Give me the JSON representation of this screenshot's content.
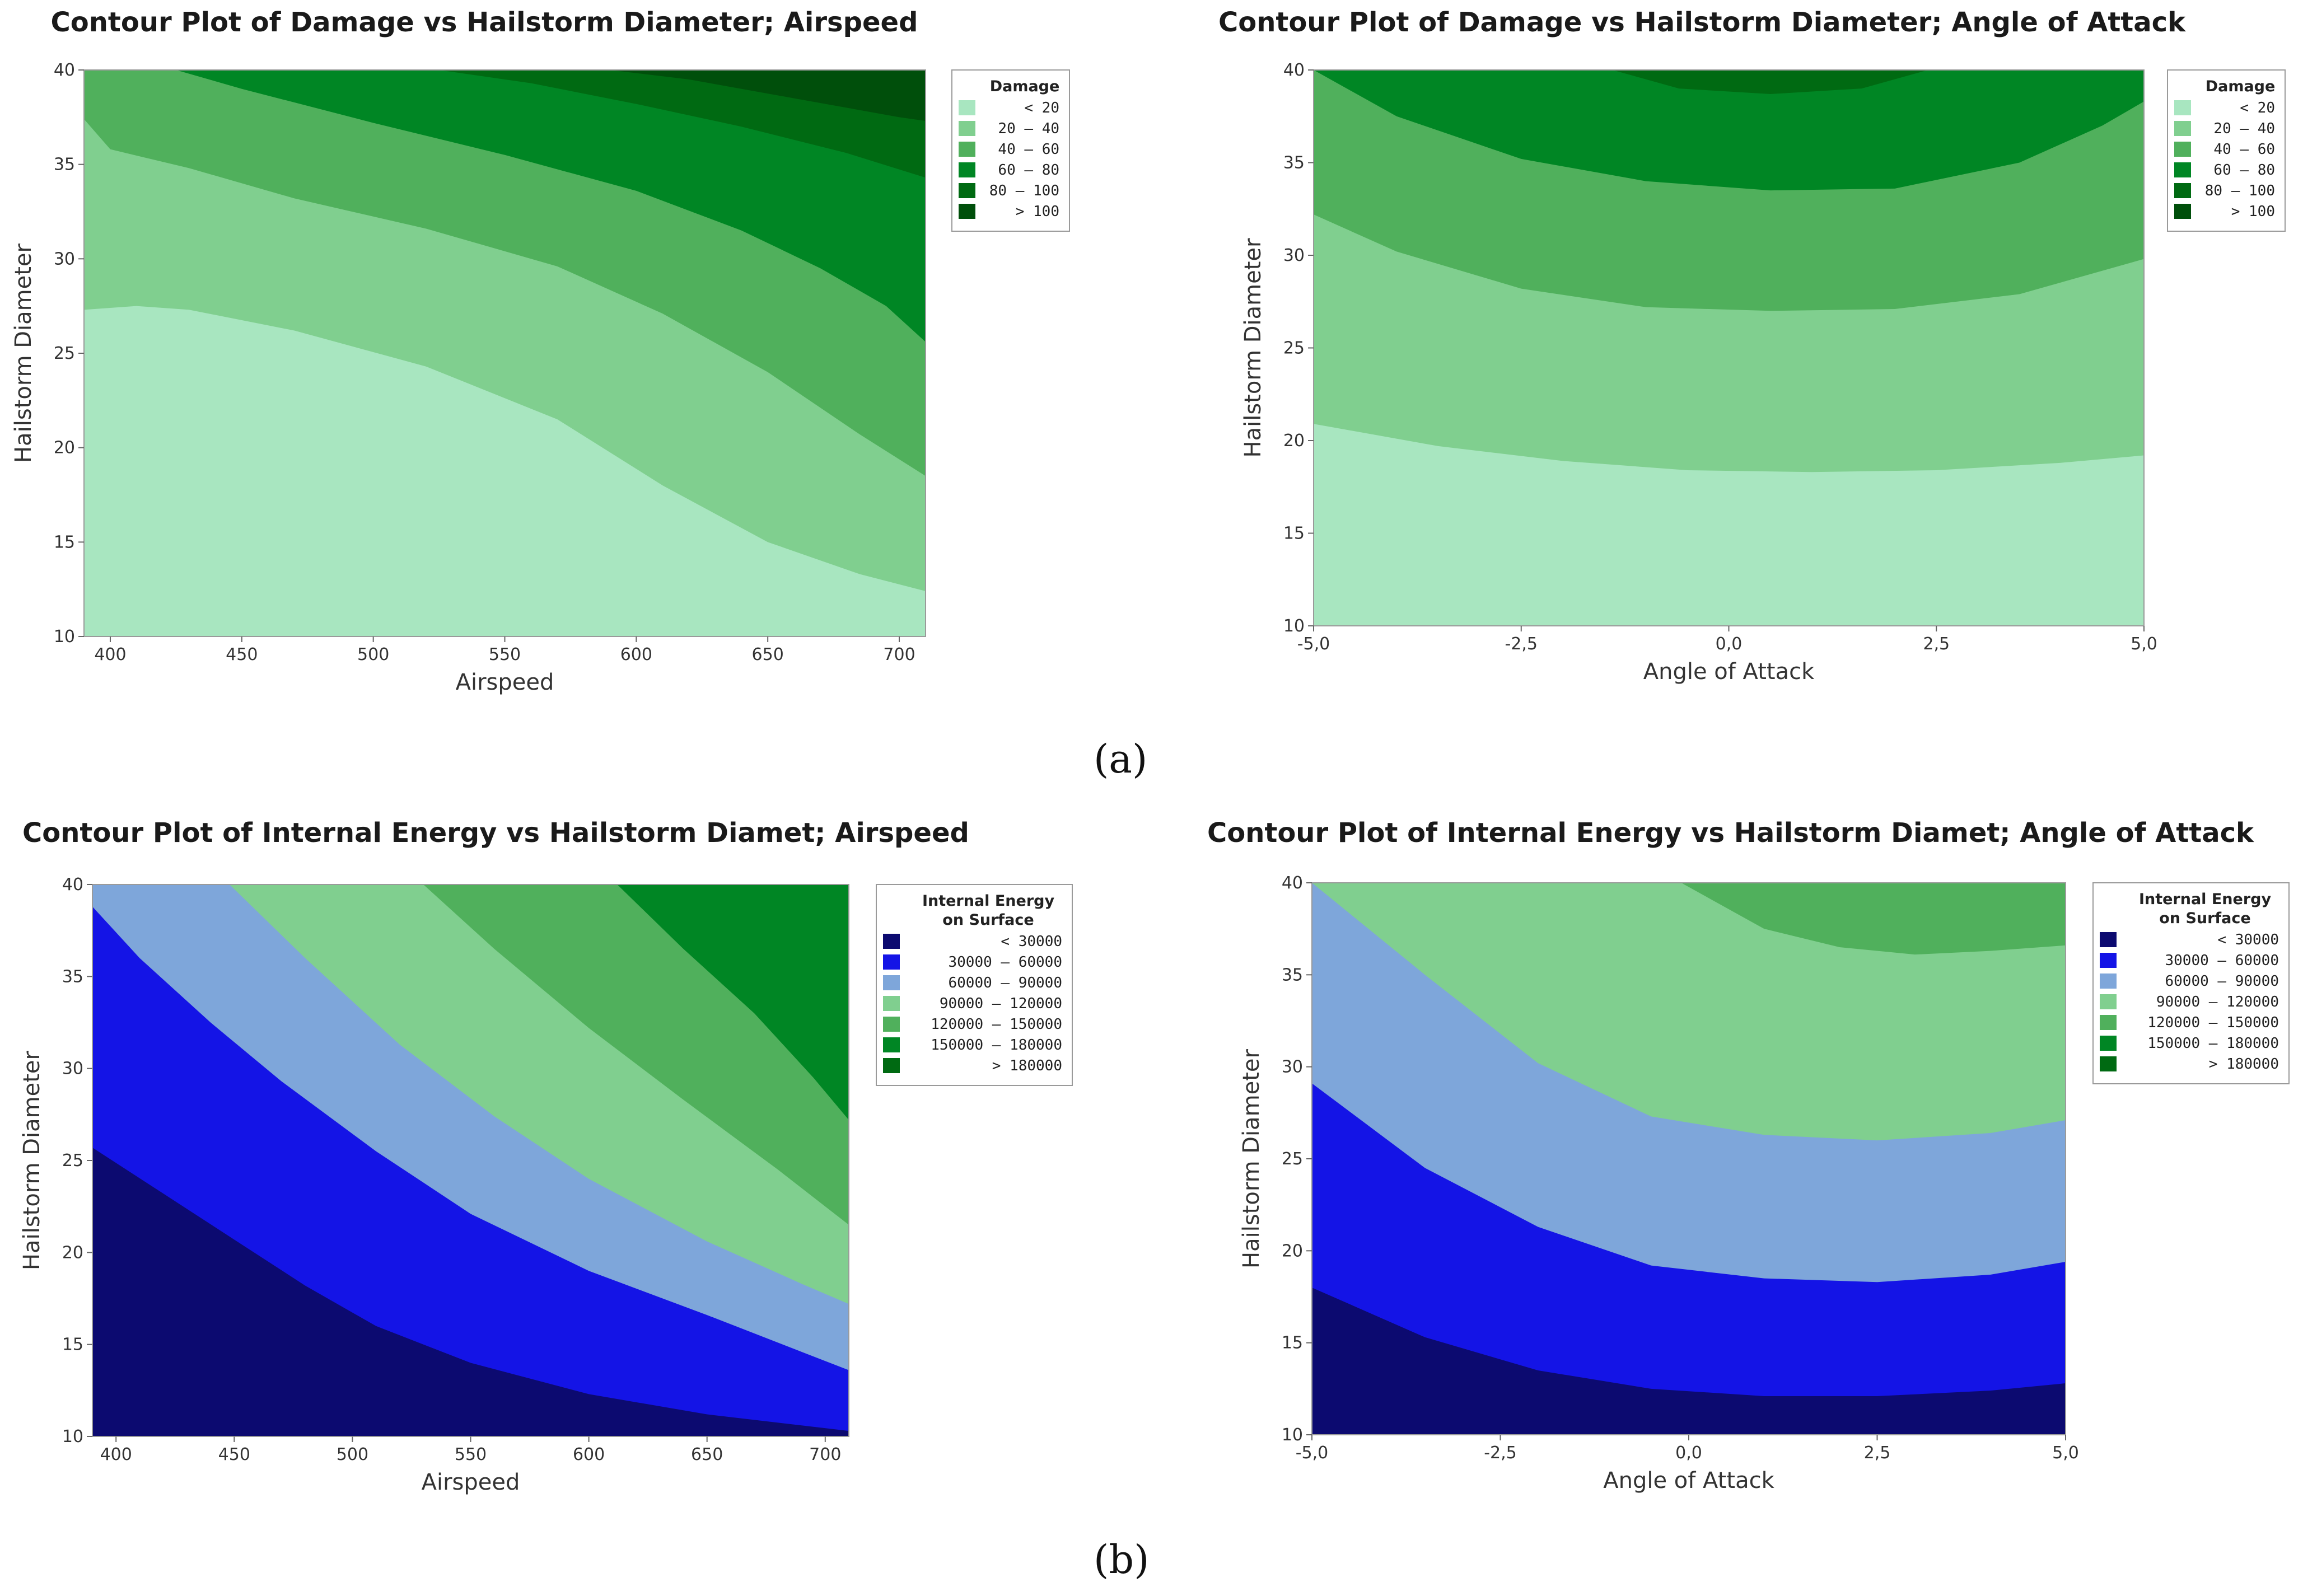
{
  "figure_labels": {
    "a": "(a)",
    "b": "(b)"
  },
  "chart_data": [
    {
      "type": "contour",
      "title": "Contour Plot of Damage vs Hailstorm Diameter; Airspeed",
      "xlabel": "Airspeed",
      "ylabel": "Hailstorm Diameter",
      "xlim": [
        390,
        710
      ],
      "ylim": [
        10,
        40
      ],
      "xticks": [
        400,
        450,
        500,
        550,
        600,
        650,
        700
      ],
      "xtick_labels": [
        "400",
        "450",
        "500",
        "550",
        "600",
        "650",
        "700"
      ],
      "yticks": [
        10,
        15,
        20,
        25,
        30,
        35,
        40
      ],
      "ytick_labels": [
        "10",
        "15",
        "20",
        "25",
        "30",
        "35",
        "40"
      ],
      "legend": {
        "title": [
          "Damage"
        ],
        "bands": [
          {
            "label": "<  20",
            "color": "#a8e6c0"
          },
          {
            "label": "20 –  40",
            "color": "#80cf8f"
          },
          {
            "label": "40 –  60",
            "color": "#50b05c"
          },
          {
            "label": "60 –  80",
            "color": "#008624"
          },
          {
            "label": "80 – 100",
            "color": "#006a12"
          },
          {
            "label": ">  100",
            "color": "#004f0b"
          }
        ]
      },
      "contour_levels": [
        {
          "level": 20,
          "points": [
            [
              390,
              27.3
            ],
            [
              410,
              27.5
            ],
            [
              430,
              27.3
            ],
            [
              470,
              26.2
            ],
            [
              520,
              24.3
            ],
            [
              570,
              21.5
            ],
            [
              610,
              18.0
            ],
            [
              650,
              15.0
            ],
            [
              685,
              13.3
            ],
            [
              710,
              12.4
            ]
          ]
        },
        {
          "level": 40,
          "points": [
            [
              390,
              37.4
            ],
            [
              400,
              35.8
            ],
            [
              430,
              34.8
            ],
            [
              470,
              33.2
            ],
            [
              520,
              31.6
            ],
            [
              570,
              29.6
            ],
            [
              610,
              27.1
            ],
            [
              650,
              24.0
            ],
            [
              685,
              20.7
            ],
            [
              710,
              18.5
            ]
          ]
        },
        {
          "level": 60,
          "points": [
            [
              425,
              40
            ],
            [
              450,
              39.0
            ],
            [
              500,
              37.2
            ],
            [
              550,
              35.5
            ],
            [
              600,
              33.6
            ],
            [
              640,
              31.5
            ],
            [
              670,
              29.5
            ],
            [
              695,
              27.5
            ],
            [
              710,
              25.6
            ]
          ]
        },
        {
          "level": 80,
          "points": [
            [
              525,
              40
            ],
            [
              560,
              39.3
            ],
            [
              600,
              38.2
            ],
            [
              640,
              37.0
            ],
            [
              680,
              35.6
            ],
            [
              710,
              34.3
            ]
          ]
        },
        {
          "level": 100,
          "points": [
            [
              590,
              40
            ],
            [
              620,
              39.5
            ],
            [
              660,
              38.5
            ],
            [
              700,
              37.5
            ],
            [
              710,
              37.3
            ]
          ]
        }
      ]
    },
    {
      "type": "contour",
      "title": "Contour Plot of Damage vs Hailstorm Diameter; Angle of Attack",
      "xlabel": "Angle of Attack",
      "ylabel": "Hailstorm Diameter",
      "xlim": [
        -5,
        5
      ],
      "ylim": [
        10,
        40
      ],
      "xticks": [
        -5,
        -2.5,
        0,
        2.5,
        5
      ],
      "xtick_labels": [
        "-5,0",
        "-2,5",
        "0,0",
        "2,5",
        "5,0"
      ],
      "yticks": [
        10,
        15,
        20,
        25,
        30,
        35,
        40
      ],
      "ytick_labels": [
        "10",
        "15",
        "20",
        "25",
        "30",
        "35",
        "40"
      ],
      "legend": {
        "title": [
          "Damage"
        ],
        "bands": [
          {
            "label": "<  20",
            "color": "#a8e6c0"
          },
          {
            "label": "20 –  40",
            "color": "#80cf8f"
          },
          {
            "label": "40 –  60",
            "color": "#50b05c"
          },
          {
            "label": "60 –  80",
            "color": "#008624"
          },
          {
            "label": "80 – 100",
            "color": "#006a12"
          },
          {
            "label": ">  100",
            "color": "#004f0b"
          }
        ]
      },
      "contour_levels": [
        {
          "level": 20,
          "points": [
            [
              -5,
              20.9
            ],
            [
              -3.5,
              19.7
            ],
            [
              -2,
              18.9
            ],
            [
              -0.5,
              18.4
            ],
            [
              1,
              18.3
            ],
            [
              2.5,
              18.4
            ],
            [
              4,
              18.8
            ],
            [
              5,
              19.2
            ]
          ]
        },
        {
          "level": 40,
          "points": [
            [
              -5,
              32.2
            ],
            [
              -4,
              30.2
            ],
            [
              -2.5,
              28.2
            ],
            [
              -1,
              27.2
            ],
            [
              0.5,
              27.0
            ],
            [
              2,
              27.1
            ],
            [
              3.5,
              27.9
            ],
            [
              5,
              29.8
            ]
          ]
        },
        {
          "level": 60,
          "points": [
            [
              -5,
              40
            ],
            [
              -4,
              37.5
            ],
            [
              -2.5,
              35.2
            ],
            [
              -1,
              34.0
            ],
            [
              0.5,
              33.5
            ],
            [
              2,
              33.6
            ],
            [
              3.5,
              35.0
            ],
            [
              4.5,
              37.0
            ],
            [
              5,
              38.3
            ]
          ]
        },
        {
          "level": 80,
          "points": [
            [
              -1.4,
              40
            ],
            [
              -0.6,
              39.0
            ],
            [
              0.5,
              38.7
            ],
            [
              1.6,
              39.0
            ],
            [
              2.4,
              40
            ]
          ]
        }
      ]
    },
    {
      "type": "contour",
      "title": "Contour Plot of Internal Energy  vs Hailstorm Diamet; Airspeed",
      "xlabel": "Airspeed",
      "ylabel": "Hailstorm Diameter",
      "xlim": [
        390,
        710
      ],
      "ylim": [
        10,
        40
      ],
      "xticks": [
        400,
        450,
        500,
        550,
        600,
        650,
        700
      ],
      "xtick_labels": [
        "400",
        "450",
        "500",
        "550",
        "600",
        "650",
        "700"
      ],
      "yticks": [
        10,
        15,
        20,
        25,
        30,
        35,
        40
      ],
      "ytick_labels": [
        "10",
        "15",
        "20",
        "25",
        "30",
        "35",
        "40"
      ],
      "legend": {
        "title": [
          "Internal Energy",
          "on Surface"
        ],
        "bands": [
          {
            "label": "<   30000",
            "color": "#0c0a70"
          },
          {
            "label": "30000 –  60000",
            "color": "#1414e6"
          },
          {
            "label": "60000 –  90000",
            "color": "#7ea6da"
          },
          {
            "label": "90000 – 120000",
            "color": "#80cf8f"
          },
          {
            "label": "120000 – 150000",
            "color": "#50b05c"
          },
          {
            "label": "150000 – 180000",
            "color": "#008624"
          },
          {
            "label": ">  180000",
            "color": "#006a12"
          }
        ]
      },
      "contour_levels": [
        {
          "level": 30000,
          "points": [
            [
              390,
              25.7
            ],
            [
              420,
              23.2
            ],
            [
              450,
              20.7
            ],
            [
              480,
              18.2
            ],
            [
              510,
              16.0
            ],
            [
              550,
              14.0
            ],
            [
              600,
              12.3
            ],
            [
              650,
              11.2
            ],
            [
              710,
              10.3
            ]
          ]
        },
        {
          "level": 60000,
          "points": [
            [
              390,
              38.8
            ],
            [
              410,
              36.0
            ],
            [
              440,
              32.5
            ],
            [
              470,
              29.3
            ],
            [
              510,
              25.5
            ],
            [
              550,
              22.1
            ],
            [
              600,
              19.0
            ],
            [
              650,
              16.6
            ],
            [
              690,
              14.6
            ],
            [
              710,
              13.6
            ]
          ]
        },
        {
          "level": 90000,
          "points": [
            [
              448,
              40
            ],
            [
              480,
              36.0
            ],
            [
              520,
              31.3
            ],
            [
              560,
              27.4
            ],
            [
              600,
              24.0
            ],
            [
              650,
              20.6
            ],
            [
              690,
              18.3
            ],
            [
              710,
              17.2
            ]
          ]
        },
        {
          "level": 120000,
          "points": [
            [
              530,
              40
            ],
            [
              560,
              36.5
            ],
            [
              600,
              32.2
            ],
            [
              640,
              28.3
            ],
            [
              680,
              24.5
            ],
            [
              710,
              21.5
            ]
          ]
        },
        {
          "level": 150000,
          "points": [
            [
              612,
              40
            ],
            [
              640,
              36.5
            ],
            [
              670,
              33.0
            ],
            [
              695,
              29.5
            ],
            [
              710,
              27.2
            ]
          ]
        }
      ]
    },
    {
      "type": "contour",
      "title": "Contour Plot of Internal Energy  vs Hailstorm Diamet; Angle of Attack",
      "xlabel": "Angle of Attack",
      "ylabel": "Hailstorm Diameter",
      "xlim": [
        -5,
        5
      ],
      "ylim": [
        10,
        40
      ],
      "xticks": [
        -5,
        -2.5,
        0,
        2.5,
        5
      ],
      "xtick_labels": [
        "-5,0",
        "-2,5",
        "0,0",
        "2,5",
        "5,0"
      ],
      "yticks": [
        10,
        15,
        20,
        25,
        30,
        35,
        40
      ],
      "ytick_labels": [
        "10",
        "15",
        "20",
        "25",
        "30",
        "35",
        "40"
      ],
      "legend": {
        "title": [
          "Internal Energy",
          "on Surface"
        ],
        "bands": [
          {
            "label": "<   30000",
            "color": "#0c0a70"
          },
          {
            "label": "30000 –  60000",
            "color": "#1414e6"
          },
          {
            "label": "60000 –  90000",
            "color": "#7ea6da"
          },
          {
            "label": "90000 – 120000",
            "color": "#80cf8f"
          },
          {
            "label": "120000 – 150000",
            "color": "#50b05c"
          },
          {
            "label": "150000 – 180000",
            "color": "#008624"
          },
          {
            "label": ">  180000",
            "color": "#006a12"
          }
        ]
      },
      "contour_levels": [
        {
          "level": 30000,
          "points": [
            [
              -5,
              18.0
            ],
            [
              -3.5,
              15.3
            ],
            [
              -2,
              13.5
            ],
            [
              -0.5,
              12.5
            ],
            [
              1,
              12.1
            ],
            [
              2.5,
              12.1
            ],
            [
              4,
              12.4
            ],
            [
              5,
              12.8
            ]
          ]
        },
        {
          "level": 60000,
          "points": [
            [
              -5,
              29.1
            ],
            [
              -3.5,
              24.5
            ],
            [
              -2,
              21.3
            ],
            [
              -0.5,
              19.2
            ],
            [
              1,
              18.5
            ],
            [
              2.5,
              18.3
            ],
            [
              4,
              18.7
            ],
            [
              5,
              19.4
            ]
          ]
        },
        {
          "level": 90000,
          "points": [
            [
              -5,
              40
            ],
            [
              -3.5,
              35.0
            ],
            [
              -2,
              30.2
            ],
            [
              -0.5,
              27.3
            ],
            [
              1,
              26.3
            ],
            [
              2.5,
              26.0
            ],
            [
              4,
              26.4
            ],
            [
              5,
              27.1
            ]
          ]
        },
        {
          "level": 120000,
          "points": [
            [
              -0.1,
              40
            ],
            [
              1,
              37.5
            ],
            [
              2,
              36.5
            ],
            [
              3,
              36.1
            ],
            [
              4,
              36.3
            ],
            [
              5,
              36.6
            ]
          ]
        }
      ]
    }
  ]
}
